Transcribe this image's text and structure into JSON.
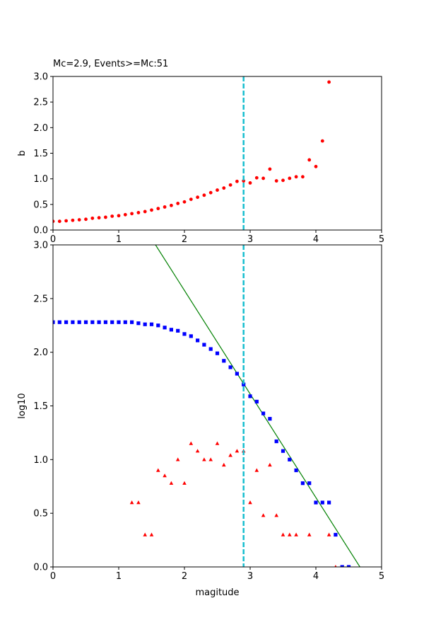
{
  "chart_data": [
    {
      "type": "scatter",
      "title": "Mc=2.9, Events>=Mc:51",
      "xlabel": "",
      "ylabel": "b",
      "xlim": [
        0,
        5
      ],
      "ylim": [
        0,
        3
      ],
      "x_ticks": [
        "0",
        "1",
        "2",
        "3",
        "4",
        "5"
      ],
      "y_ticks": [
        "0.0",
        "0.5",
        "1.0",
        "1.5",
        "2.0",
        "2.5",
        "3.0"
      ],
      "grid": false,
      "vline": {
        "x": 2.9,
        "color": "#17becf",
        "style": "dashed"
      },
      "series": [
        {
          "marker": "circle",
          "color": "#ff0000",
          "x": [
            0.0,
            0.1,
            0.2,
            0.3,
            0.4,
            0.5,
            0.6,
            0.7,
            0.8,
            0.9,
            1.0,
            1.1,
            1.2,
            1.3,
            1.4,
            1.5,
            1.6,
            1.7,
            1.8,
            1.9,
            2.0,
            2.1,
            2.2,
            2.3,
            2.4,
            2.5,
            2.6,
            2.7,
            2.8,
            2.9,
            3.0,
            3.1,
            3.2,
            3.3,
            3.4,
            3.5,
            3.6,
            3.7,
            3.8,
            3.9,
            4.0,
            4.1,
            4.2
          ],
          "y": [
            0.17,
            0.17,
            0.18,
            0.19,
            0.2,
            0.21,
            0.23,
            0.24,
            0.25,
            0.27,
            0.28,
            0.3,
            0.32,
            0.34,
            0.36,
            0.39,
            0.42,
            0.45,
            0.48,
            0.52,
            0.55,
            0.6,
            0.64,
            0.68,
            0.73,
            0.78,
            0.82,
            0.88,
            0.95,
            0.96,
            0.92,
            1.02,
            1.01,
            1.19,
            0.96,
            0.97,
            1.01,
            1.04,
            1.04,
            1.37,
            1.24,
            1.74,
            2.89
          ]
        }
      ]
    },
    {
      "type": "scatter",
      "title": "",
      "xlabel": "magitude",
      "ylabel": "log10",
      "xlim": [
        0,
        5
      ],
      "ylim": [
        0,
        3
      ],
      "x_ticks": [
        "0",
        "1",
        "2",
        "3",
        "4",
        "5"
      ],
      "y_ticks": [
        "0.0",
        "0.5",
        "1.0",
        "1.5",
        "2.0",
        "2.5",
        "3.0"
      ],
      "grid": false,
      "vline": {
        "x": 2.9,
        "color": "#17becf",
        "style": "dashed"
      },
      "fit_line": {
        "color": "#008000",
        "x": [
          1.56,
          4.67
        ],
        "y": [
          3.0,
          0.0
        ]
      },
      "series": [
        {
          "marker": "square",
          "color": "#0000ff",
          "x": [
            0.0,
            0.1,
            0.2,
            0.3,
            0.4,
            0.5,
            0.6,
            0.7,
            0.8,
            0.9,
            1.0,
            1.1,
            1.2,
            1.3,
            1.4,
            1.5,
            1.6,
            1.7,
            1.8,
            1.9,
            2.0,
            2.1,
            2.2,
            2.3,
            2.4,
            2.5,
            2.6,
            2.7,
            2.8,
            2.9,
            3.0,
            3.1,
            3.2,
            3.3,
            3.4,
            3.5,
            3.6,
            3.7,
            3.8,
            3.9,
            4.0,
            4.1,
            4.2,
            4.3,
            4.4,
            4.5
          ],
          "y": [
            2.28,
            2.28,
            2.28,
            2.28,
            2.28,
            2.28,
            2.28,
            2.28,
            2.28,
            2.28,
            2.28,
            2.28,
            2.28,
            2.27,
            2.26,
            2.26,
            2.25,
            2.23,
            2.21,
            2.2,
            2.17,
            2.15,
            2.11,
            2.07,
            2.03,
            1.99,
            1.92,
            1.86,
            1.8,
            1.7,
            1.59,
            1.54,
            1.43,
            1.38,
            1.17,
            1.08,
            1.0,
            0.9,
            0.78,
            0.78,
            0.6,
            0.6,
            0.6,
            0.3,
            0.0,
            0.0
          ]
        },
        {
          "marker": "triangle",
          "color": "#ff0000",
          "x": [
            1.2,
            1.3,
            1.4,
            1.5,
            1.6,
            1.7,
            1.8,
            1.9,
            2.0,
            2.1,
            2.2,
            2.3,
            2.4,
            2.5,
            2.6,
            2.7,
            2.8,
            2.9,
            3.0,
            3.1,
            3.2,
            3.3,
            3.4,
            3.5,
            3.6,
            3.7,
            3.9,
            4.2,
            4.3
          ],
          "y": [
            0.6,
            0.6,
            0.3,
            0.3,
            0.9,
            0.85,
            0.78,
            1.0,
            0.78,
            1.15,
            1.08,
            1.0,
            1.0,
            1.15,
            0.95,
            1.04,
            1.08,
            1.08,
            0.6,
            0.9,
            0.48,
            0.95,
            0.48,
            0.3,
            0.3,
            0.3,
            0.3,
            0.3,
            0.0
          ]
        }
      ]
    }
  ]
}
